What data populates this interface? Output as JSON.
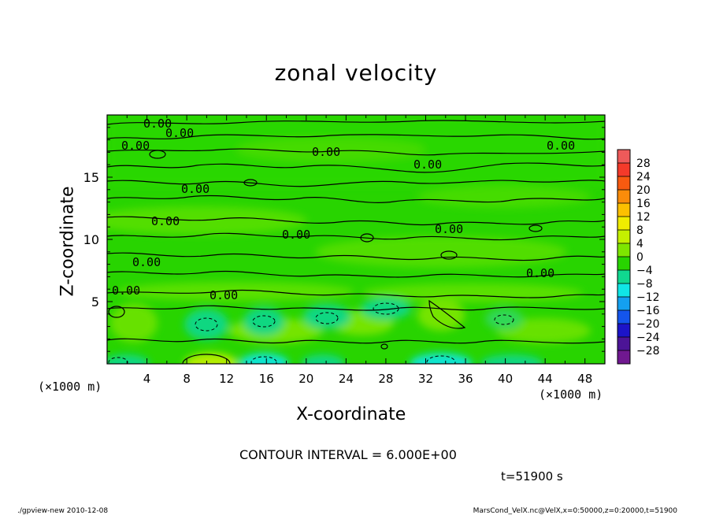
{
  "chart_data": {
    "type": "heatmap",
    "title": "zonal velocity",
    "xlabel": "X-coordinate",
    "ylabel": "Z-coordinate",
    "x_unit": "(×1000 m)",
    "y_unit": "(×1000 m)",
    "xlim": [
      0,
      50
    ],
    "ylim": [
      0,
      20
    ],
    "x_ticks": [
      "4",
      "8",
      "12",
      "16",
      "20",
      "24",
      "28",
      "32",
      "36",
      "40",
      "44",
      "48"
    ],
    "y_ticks": [
      "5",
      "10",
      "15"
    ],
    "contour_interval": "CONTOUR INTERVAL = 6.000E+00",
    "contour_labels": [
      "0.00",
      "0.00",
      "0.00",
      "0.00",
      "0.00",
      "0.00",
      "0.00",
      "0.00",
      "0.00",
      "0.00",
      "0.00",
      "0.00",
      "0.00",
      "0.00"
    ],
    "colorbar": {
      "labels": [
        "28",
        "24",
        "20",
        "16",
        "12",
        "8",
        "4",
        "0",
        "−4",
        "−8",
        "−12",
        "−16",
        "−20",
        "−24",
        "−28"
      ],
      "colors": [
        "#ee5a5a",
        "#f43a2a",
        "#f85a10",
        "#fa8c0a",
        "#fcc000",
        "#f0ec00",
        "#c4f000",
        "#7ee600",
        "#28d400",
        "#10d890",
        "#10e6e6",
        "#14a0f0",
        "#1455ec",
        "#1c14c8",
        "#4c1496",
        "#701890"
      ]
    },
    "time_label": "t=51900 s",
    "footer_left": "./gpview-new  2010-12-08",
    "footer_right": "MarsCond_VelX.nc@VelX,x=0:50000,z=0:20000,t=51900"
  }
}
